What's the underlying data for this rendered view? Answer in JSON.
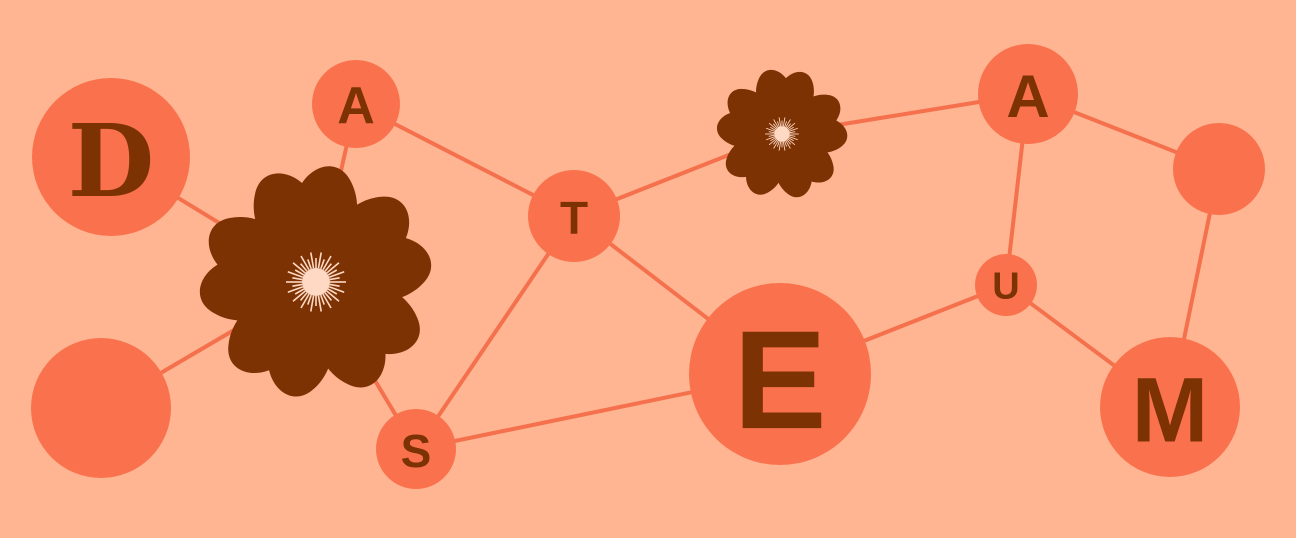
{
  "colors": {
    "background": "#ffb592",
    "node": "#fa724d",
    "edge": "#f5704c",
    "text": "#7d3203",
    "flower": "#7d3203",
    "flower_center": "#ffd9c4"
  },
  "nodes": [
    {
      "id": "D",
      "label": "D"
    },
    {
      "id": "A1",
      "label": "A"
    },
    {
      "id": "T",
      "label": "T"
    },
    {
      "id": "S",
      "label": "S"
    },
    {
      "id": "E",
      "label": "E"
    },
    {
      "id": "A2",
      "label": "A"
    },
    {
      "id": "U",
      "label": "U"
    },
    {
      "id": "M",
      "label": "M"
    },
    {
      "id": "blank-left",
      "label": ""
    },
    {
      "id": "blank-right",
      "label": ""
    }
  ],
  "decorations": [
    {
      "id": "flower-large",
      "icon": "flower-icon"
    },
    {
      "id": "flower-small",
      "icon": "flower-icon"
    }
  ],
  "edges": [
    [
      "D",
      "flower-large"
    ],
    [
      "blank-left",
      "flower-large"
    ],
    [
      "A1",
      "flower-large"
    ],
    [
      "flower-large",
      "S"
    ],
    [
      "A1",
      "T"
    ],
    [
      "T",
      "S"
    ],
    [
      "T",
      "E"
    ],
    [
      "T",
      "flower-small"
    ],
    [
      "flower-small",
      "A2"
    ],
    [
      "S",
      "E"
    ],
    [
      "E",
      "U"
    ],
    [
      "U",
      "A2"
    ],
    [
      "U",
      "M"
    ],
    [
      "A2",
      "blank-right"
    ],
    [
      "blank-right",
      "M"
    ]
  ]
}
